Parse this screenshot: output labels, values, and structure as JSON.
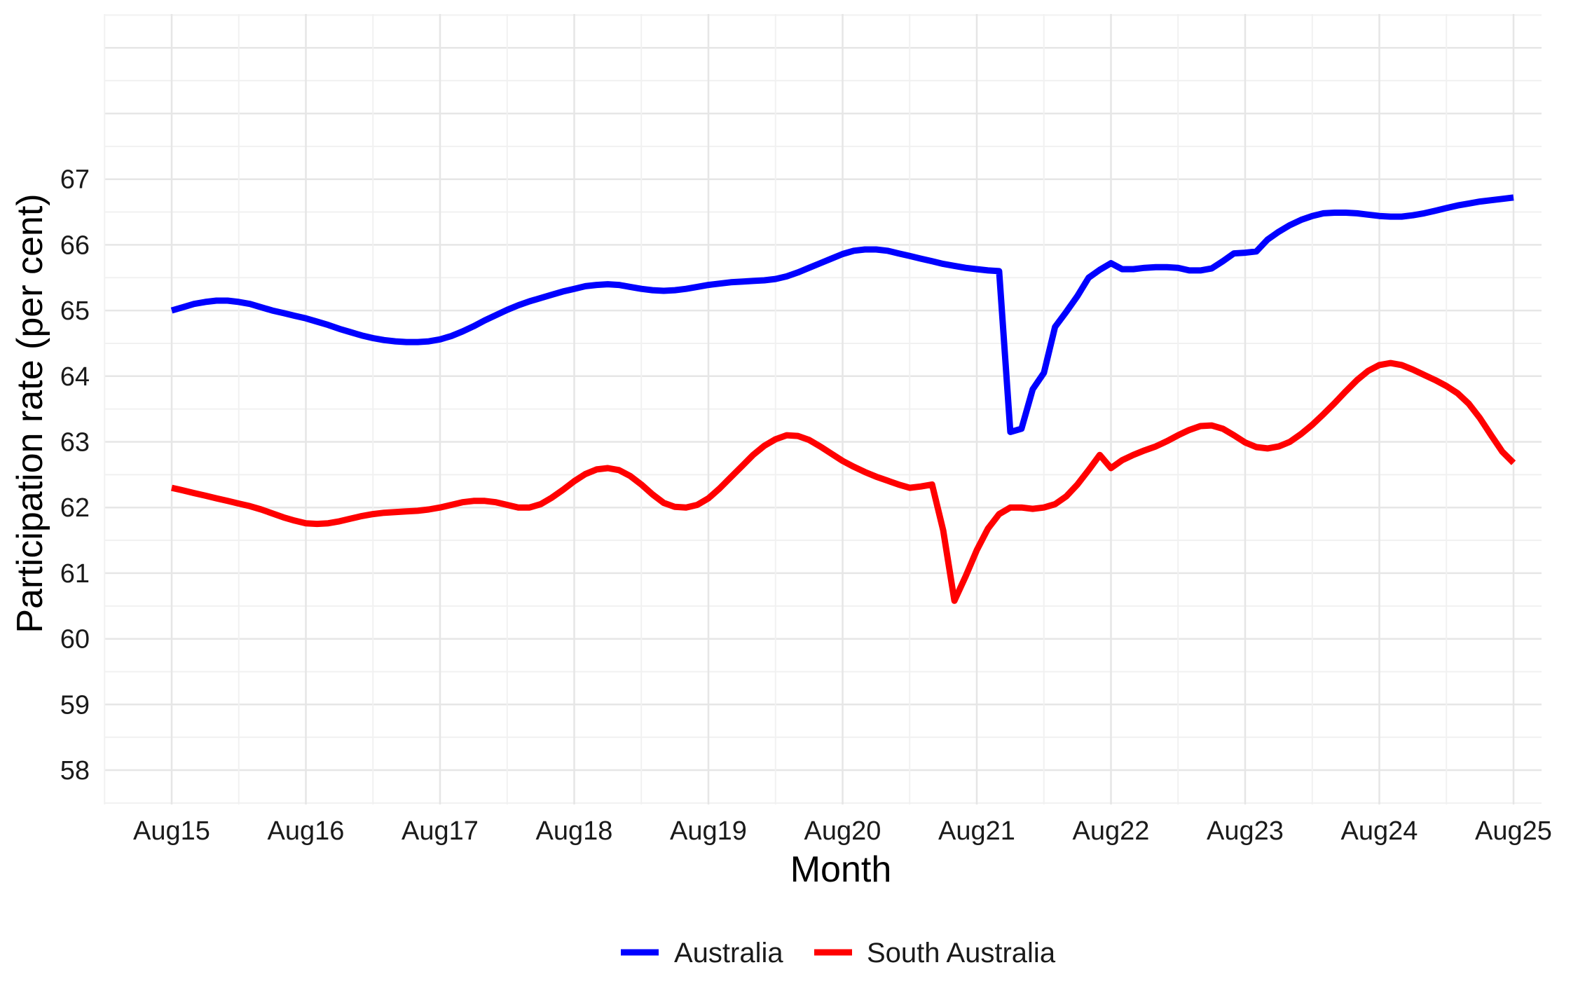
{
  "chart_data": {
    "type": "line",
    "xlabel": "Month",
    "ylabel": "Participation rate (per cent)",
    "x_start": "Aug15",
    "x_end": "Aug25",
    "x_ticks": [
      "Aug15",
      "Aug16",
      "Aug17",
      "Aug18",
      "Aug19",
      "Aug20",
      "Aug21",
      "Aug22",
      "Aug23",
      "Aug24",
      "Aug25"
    ],
    "y_ticks": [
      58,
      59,
      60,
      61,
      62,
      63,
      64,
      65,
      66,
      67
    ],
    "ylim": [
      57.5,
      69.5
    ],
    "grid": true,
    "legend_position": "bottom",
    "series": [
      {
        "name": "Australia",
        "color": "#0000ff",
        "values": [
          65.0,
          65.05,
          65.1,
          65.13,
          65.15,
          65.15,
          65.13,
          65.1,
          65.05,
          65.0,
          64.96,
          64.92,
          64.88,
          64.83,
          64.78,
          64.72,
          64.67,
          64.62,
          64.58,
          64.55,
          64.53,
          64.52,
          64.52,
          64.53,
          64.56,
          64.61,
          64.68,
          64.76,
          64.85,
          64.93,
          65.01,
          65.08,
          65.14,
          65.19,
          65.24,
          65.29,
          65.33,
          65.37,
          65.39,
          65.4,
          65.39,
          65.36,
          65.33,
          65.31,
          65.3,
          65.31,
          65.33,
          65.36,
          65.39,
          65.41,
          65.43,
          65.44,
          65.45,
          65.46,
          65.48,
          65.52,
          65.58,
          65.65,
          65.72,
          65.79,
          65.86,
          65.91,
          65.93,
          65.93,
          65.91,
          65.87,
          65.83,
          65.79,
          65.75,
          65.71,
          65.68,
          65.65,
          65.63,
          65.61,
          65.6,
          63.15,
          63.2,
          63.8,
          64.05,
          64.75,
          64.98,
          65.22,
          65.5,
          65.62,
          65.72,
          65.63,
          65.63,
          65.65,
          65.66,
          65.66,
          65.65,
          65.61,
          65.61,
          65.64,
          65.75,
          65.87,
          65.88,
          65.9,
          66.08,
          66.2,
          66.3,
          66.38,
          66.44,
          66.48,
          66.49,
          66.49,
          66.48,
          66.46,
          66.44,
          66.43,
          66.43,
          66.45,
          66.48,
          66.52,
          66.56,
          66.6,
          66.63,
          66.66,
          66.68,
          66.7,
          66.72
        ]
      },
      {
        "name": "South Australia",
        "color": "#ff0000",
        "values": [
          62.3,
          62.26,
          62.22,
          62.18,
          62.14,
          62.1,
          62.06,
          62.02,
          61.97,
          61.91,
          61.85,
          61.8,
          61.76,
          61.75,
          61.76,
          61.79,
          61.83,
          61.87,
          61.9,
          61.92,
          61.93,
          61.94,
          61.95,
          61.97,
          62.0,
          62.04,
          62.08,
          62.1,
          62.1,
          62.08,
          62.04,
          62.0,
          62.0,
          62.05,
          62.15,
          62.27,
          62.4,
          62.51,
          62.58,
          62.6,
          62.57,
          62.48,
          62.35,
          62.2,
          62.07,
          62.01,
          62.0,
          62.04,
          62.14,
          62.29,
          62.46,
          62.63,
          62.8,
          62.94,
          63.04,
          63.1,
          63.09,
          63.03,
          62.93,
          62.82,
          62.71,
          62.62,
          62.54,
          62.47,
          62.41,
          62.35,
          62.3,
          62.32,
          62.35,
          61.65,
          60.58,
          60.95,
          61.35,
          61.68,
          61.9,
          62.0,
          62.0,
          61.98,
          62.0,
          62.05,
          62.17,
          62.35,
          62.57,
          62.8,
          62.6,
          62.72,
          62.8,
          62.87,
          62.93,
          63.01,
          63.1,
          63.18,
          63.24,
          63.25,
          63.2,
          63.1,
          62.99,
          62.92,
          62.9,
          62.93,
          63.0,
          63.12,
          63.26,
          63.42,
          63.59,
          63.77,
          63.94,
          64.08,
          64.17,
          64.2,
          64.17,
          64.1,
          64.02,
          63.94,
          63.85,
          63.74,
          63.58,
          63.36,
          63.1,
          62.85,
          62.68
        ]
      }
    ]
  },
  "legend": {
    "items": [
      {
        "label": "Australia",
        "color": "#0000ff"
      },
      {
        "label": "South Australia",
        "color": "#ff0000"
      }
    ]
  }
}
